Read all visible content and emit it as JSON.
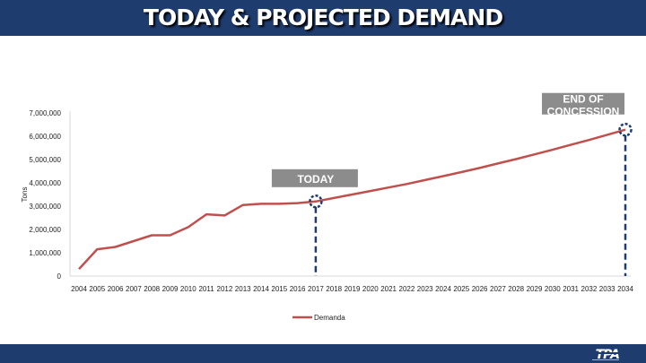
{
  "header": {
    "title": "TODAY & PROJECTED DEMAND"
  },
  "footer": {
    "logo_text": "TPA"
  },
  "colors": {
    "header_bg": "#1f3c6e",
    "series": "#c0504d",
    "marker": "#1f3c6e",
    "callout_bg": "#8c8c8c"
  },
  "chart_data": {
    "type": "line",
    "title": "",
    "xlabel": "",
    "ylabel": "Tons",
    "ylim": [
      0,
      7000000
    ],
    "yticks": [
      0,
      1000000,
      2000000,
      3000000,
      4000000,
      5000000,
      6000000,
      7000000
    ],
    "ytick_labels": [
      "0",
      "1,000,000",
      "2,000,000",
      "3,000,000",
      "4,000,000",
      "5,000,000",
      "6,000,000",
      "7,000,000"
    ],
    "x": [
      "2004",
      "2005",
      "2006",
      "2007",
      "2008",
      "2009",
      "2010",
      "2011",
      "2012",
      "2013",
      "2014",
      "2015",
      "2016",
      "2017",
      "2018",
      "2019",
      "2020",
      "2021",
      "2022",
      "2023",
      "2024",
      "2025",
      "2026",
      "2027",
      "2028",
      "2029",
      "2030",
      "2031",
      "2032",
      "2033",
      "2034"
    ],
    "series": [
      {
        "name": "Demanda",
        "values": [
          300000,
          1150000,
          1250000,
          1500000,
          1750000,
          1750000,
          2100000,
          2650000,
          2600000,
          3050000,
          3100000,
          3100000,
          3130000,
          3200000,
          3350000,
          3500000,
          3650000,
          3800000,
          3950000,
          4120000,
          4290000,
          4460000,
          4640000,
          4830000,
          5020000,
          5220000,
          5420000,
          5630000,
          5840000,
          6060000,
          6280000
        ]
      }
    ],
    "legend": "bottom",
    "grid": false,
    "annotations": [
      {
        "label": "TODAY",
        "x": "2017"
      },
      {
        "label": "END OF CONCESSION",
        "x": "2034"
      }
    ]
  }
}
